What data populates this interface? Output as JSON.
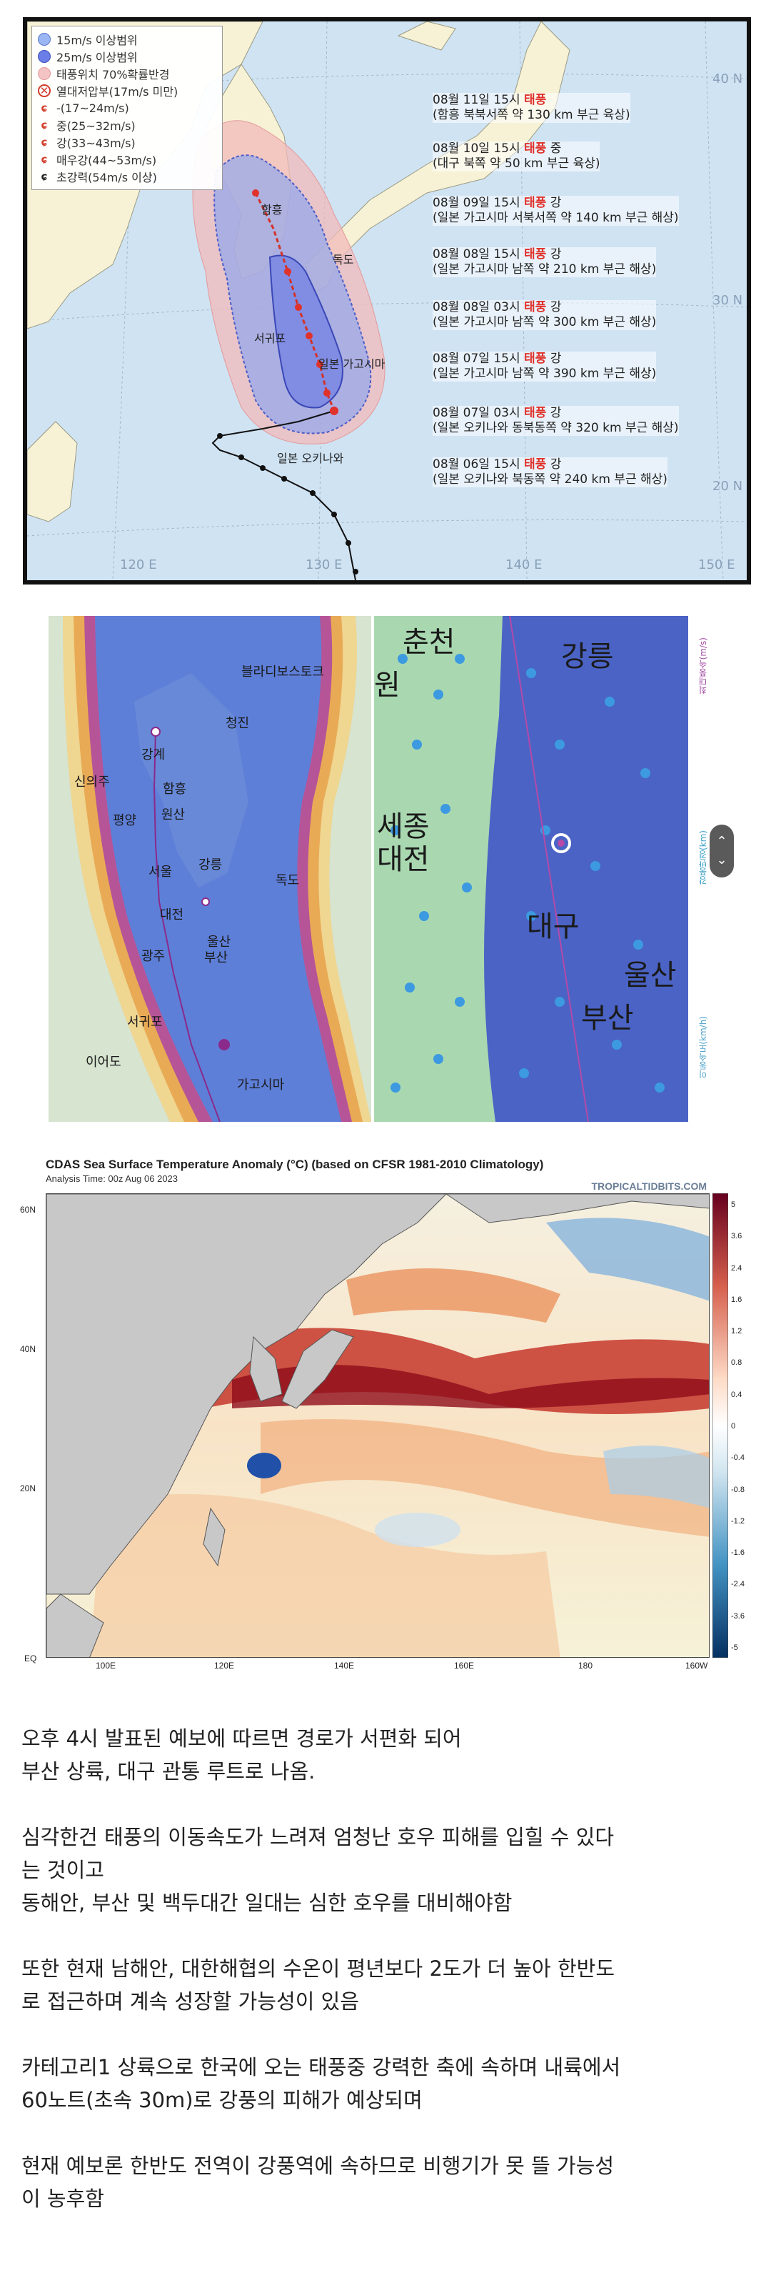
{
  "map1": {
    "legend": [
      {
        "label": "15m/s 이상범위",
        "icon": "wind-15-circle-icon"
      },
      {
        "label": "25m/s 이상범위",
        "icon": "wind-25-circle-icon"
      },
      {
        "label": "태풍위치 70%확률반경",
        "icon": "probability-radius-icon"
      },
      {
        "label": "열대저압부(17m/s 미만)",
        "icon": "tropical-depression-icon"
      },
      {
        "label": "-(17~24m/s)",
        "icon": "typhoon-symbol-icon"
      },
      {
        "label": "중(25~32m/s)",
        "icon": "typhoon-symbol-icon"
      },
      {
        "label": "강(33~43m/s)",
        "icon": "typhoon-symbol-icon"
      },
      {
        "label": "매우강(44~53m/s)",
        "icon": "typhoon-symbol-icon"
      },
      {
        "label": "초강력(54m/s 이상)",
        "icon": "typhoon-symbol-icon"
      }
    ],
    "track_labels": [
      {
        "line1_pre": "08월 11일 15시 ",
        "line1_red": "태풍",
        "line1_post": "",
        "line2": "(함흥 북북서쪽 약 130 km 부근 육상)"
      },
      {
        "line1_pre": "08월 10일 15시 ",
        "line1_red": "태풍",
        "line1_post": " 중",
        "line2": "(대구 북쪽 약 50 km 부근 육상)"
      },
      {
        "line1_pre": "08월 09일 15시 ",
        "line1_red": "태풍",
        "line1_post": " 강",
        "line2": "(일본 가고시마 서북서쪽 약 140 km 부근 해상)"
      },
      {
        "line1_pre": "08월 08일 15시 ",
        "line1_red": "태풍",
        "line1_post": " 강",
        "line2": "(일본 가고시마 남쪽 약 210 km 부근 해상)"
      },
      {
        "line1_pre": "08월 08일 03시 ",
        "line1_red": "태풍",
        "line1_post": " 강",
        "line2": "(일본 가고시마 남쪽 약 300 km 부근 해상)"
      },
      {
        "line1_pre": "08월 07일 15시 ",
        "line1_red": "태풍",
        "line1_post": " 강",
        "line2": "(일본 가고시마 남쪽 약 390 km 부근 해상)"
      },
      {
        "line1_pre": "08월 07일 03시 ",
        "line1_red": "태풍",
        "line1_post": " 강",
        "line2": "(일본 오키나와 동북동쪽 약 320 km 부근 해상)"
      },
      {
        "line1_pre": "08월 06일 15시 ",
        "line1_red": "태풍",
        "line1_post": " 강",
        "line2": "(일본 오키나와 북동쪽 약 240 km 부근 해상)"
      }
    ],
    "places": {
      "hamhung": "함흥",
      "dokdo": "독도",
      "seogwipo": "서귀포",
      "kagoshima": "일본 가고시마",
      "okinawa": "일본 오키나와"
    },
    "grid": {
      "lon": [
        "120 E",
        "130 E",
        "140 E",
        "150 E"
      ],
      "lat": [
        "40 N",
        "30 N",
        "20 N"
      ]
    }
  },
  "map2": {
    "left_cities": {
      "vladivostok": "블라디보스토크",
      "chongjin": "청진",
      "kanggye": "강계",
      "sinuiju": "신의주",
      "hamhung": "함흥",
      "pyongyang": "평양",
      "wonsan": "원산",
      "seoul": "서울",
      "gangneung": "강릉",
      "dokdo": "독도",
      "daejeon": "대전",
      "ulsan": "울산",
      "gwangju": "광주",
      "busan": "부산",
      "seogwipo": "서귀포",
      "ieodo": "이어도",
      "kagoshima": "가고시마"
    },
    "right_cities": {
      "chuncheon": "춘천",
      "gangneung": "강릉",
      "won": "원",
      "sejong": "세종",
      "daejeon": "대전",
      "daegu": "대구",
      "ulsan": "울산",
      "busan": "부산"
    },
    "side_labels": [
      "최대풍속(m/s)",
      "강풍반경(km)",
      "이동속도(km/h)"
    ],
    "scroll": {
      "up": "⌃",
      "down": "⌄"
    }
  },
  "map3": {
    "title": "CDAS Sea Surface Temperature Anomaly (°C) (based on CFSR 1981-2010 Climatology)",
    "subtitle": "Analysis Time: 00z Aug 06 2023",
    "brand": "TROPICALTIDBITS.COM",
    "lat_labels": [
      "60N",
      "40N",
      "20N",
      "EQ"
    ],
    "lon_labels": [
      "100E",
      "120E",
      "140E",
      "160E",
      "180",
      "160W"
    ],
    "colorbar": [
      "5",
      "3.6",
      "2.4",
      "1.6",
      "1.2",
      "0.8",
      "0.4",
      "0",
      "-0.4",
      "-0.8",
      "-1.2",
      "-1.6",
      "-2.4",
      "-3.6",
      "-5"
    ],
    "colors": {
      "warm": "#b2182b",
      "cool": "#2166ac",
      "land": "#c8c8c8"
    }
  },
  "article": {
    "paragraphs": [
      [
        "오후 4시 발표된 예보에 따르면 경로가 서편화 되어",
        "부산 상륙, 대구 관통 루트로 나옴."
      ],
      [
        "심각한건 태풍의 이동속도가 느려져 엄청난 호우 피해를 입힐 수 있다",
        "는 것이고",
        "동해안, 부산 및 백두대간 일대는 심한 호우를 대비해야함"
      ],
      [
        "또한 현재 남해안, 대한해협의 수온이 평년보다 2도가 더 높아 한반도",
        "로 접근하며 계속 성장할 가능성이 있음"
      ],
      [
        "카테고리1 상륙으로 한국에 오는 태풍중 강력한 축에 속하며 내륙에서",
        "60노트(초속 30m)로 강풍의 피해가 예상되며"
      ],
      [
        "현재 예보론 한반도 전역이 강풍역에 속하므로 비행기가 못 뜰 가능성",
        "이 농후함"
      ]
    ]
  }
}
